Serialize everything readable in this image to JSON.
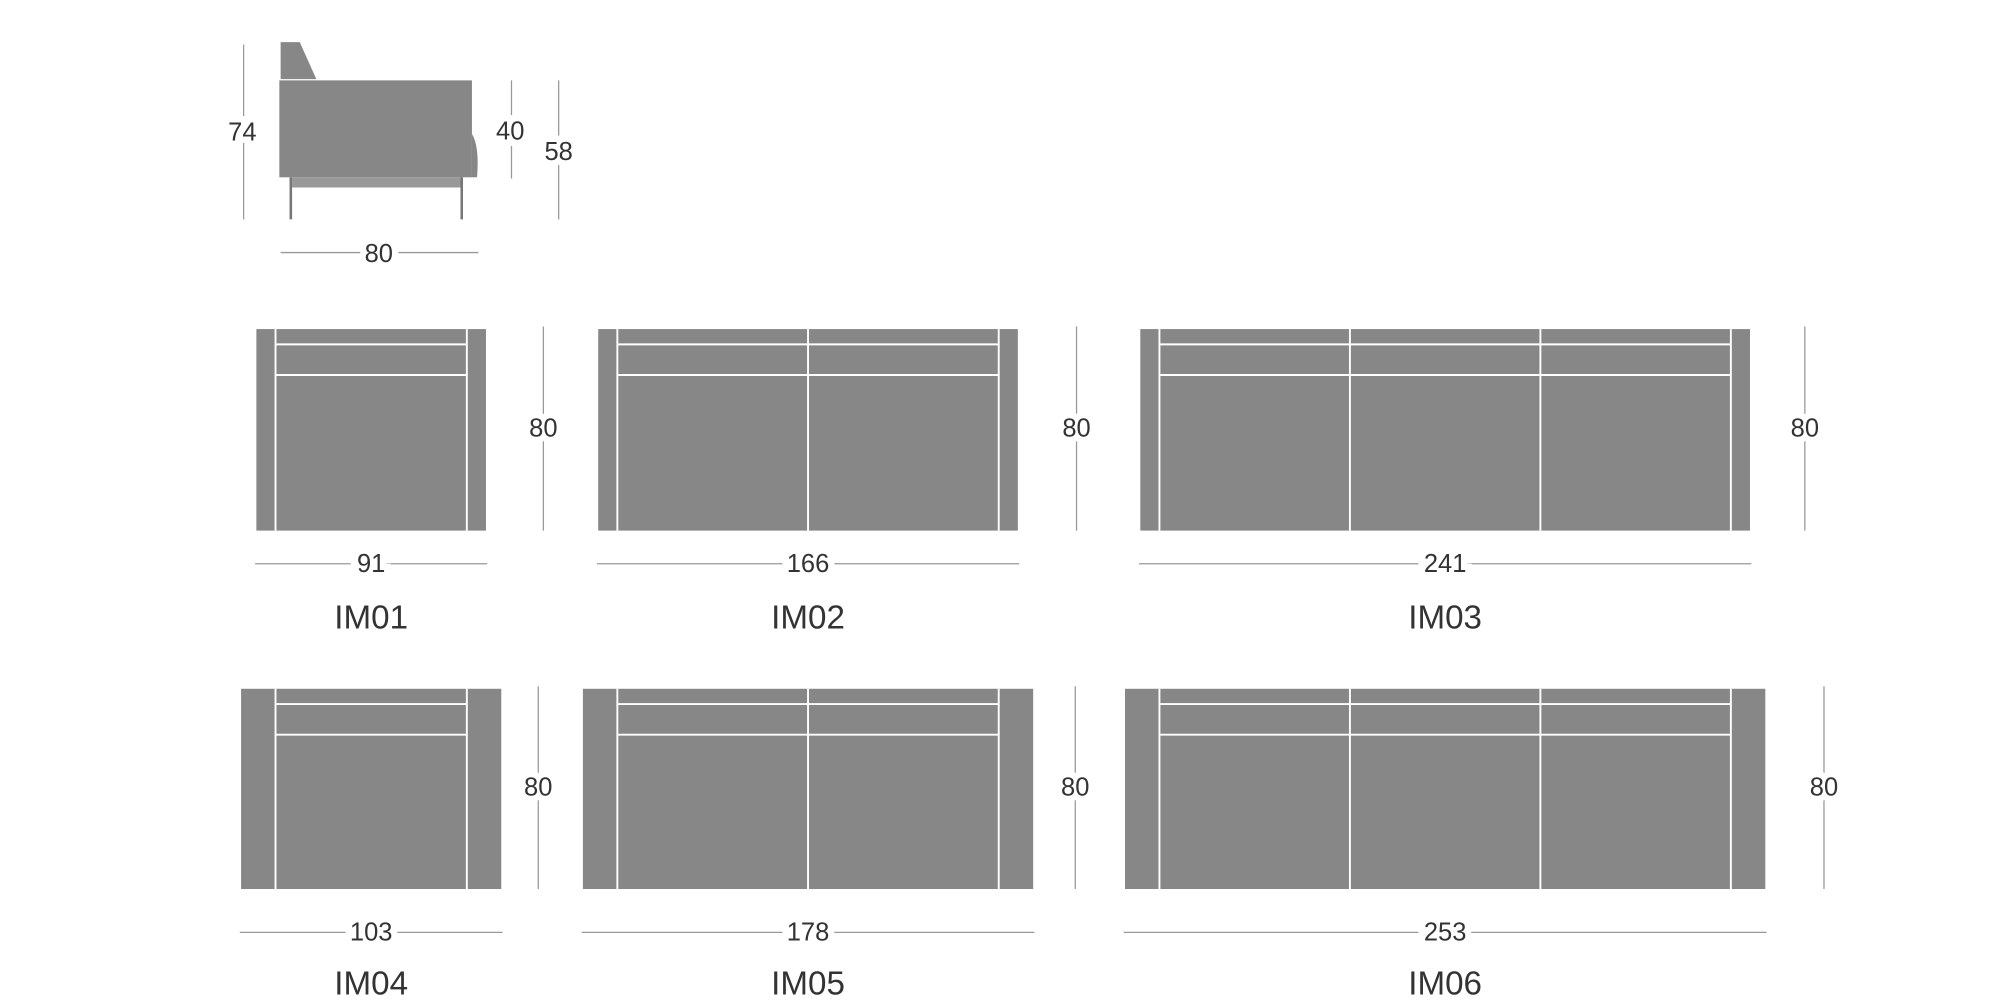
{
  "side_view": {
    "height": 74,
    "seat_height": 40,
    "arm_height": 58,
    "depth": 80
  },
  "models": [
    {
      "name": "IM01",
      "width": 91,
      "depth": 80
    },
    {
      "name": "IM02",
      "width": 166,
      "depth": 80
    },
    {
      "name": "IM03",
      "width": 241,
      "depth": 80
    },
    {
      "name": "IM04",
      "width": 103,
      "depth": 80
    },
    {
      "name": "IM05",
      "width": 178,
      "depth": 80
    },
    {
      "name": "IM06",
      "width": 253,
      "depth": 80
    }
  ]
}
